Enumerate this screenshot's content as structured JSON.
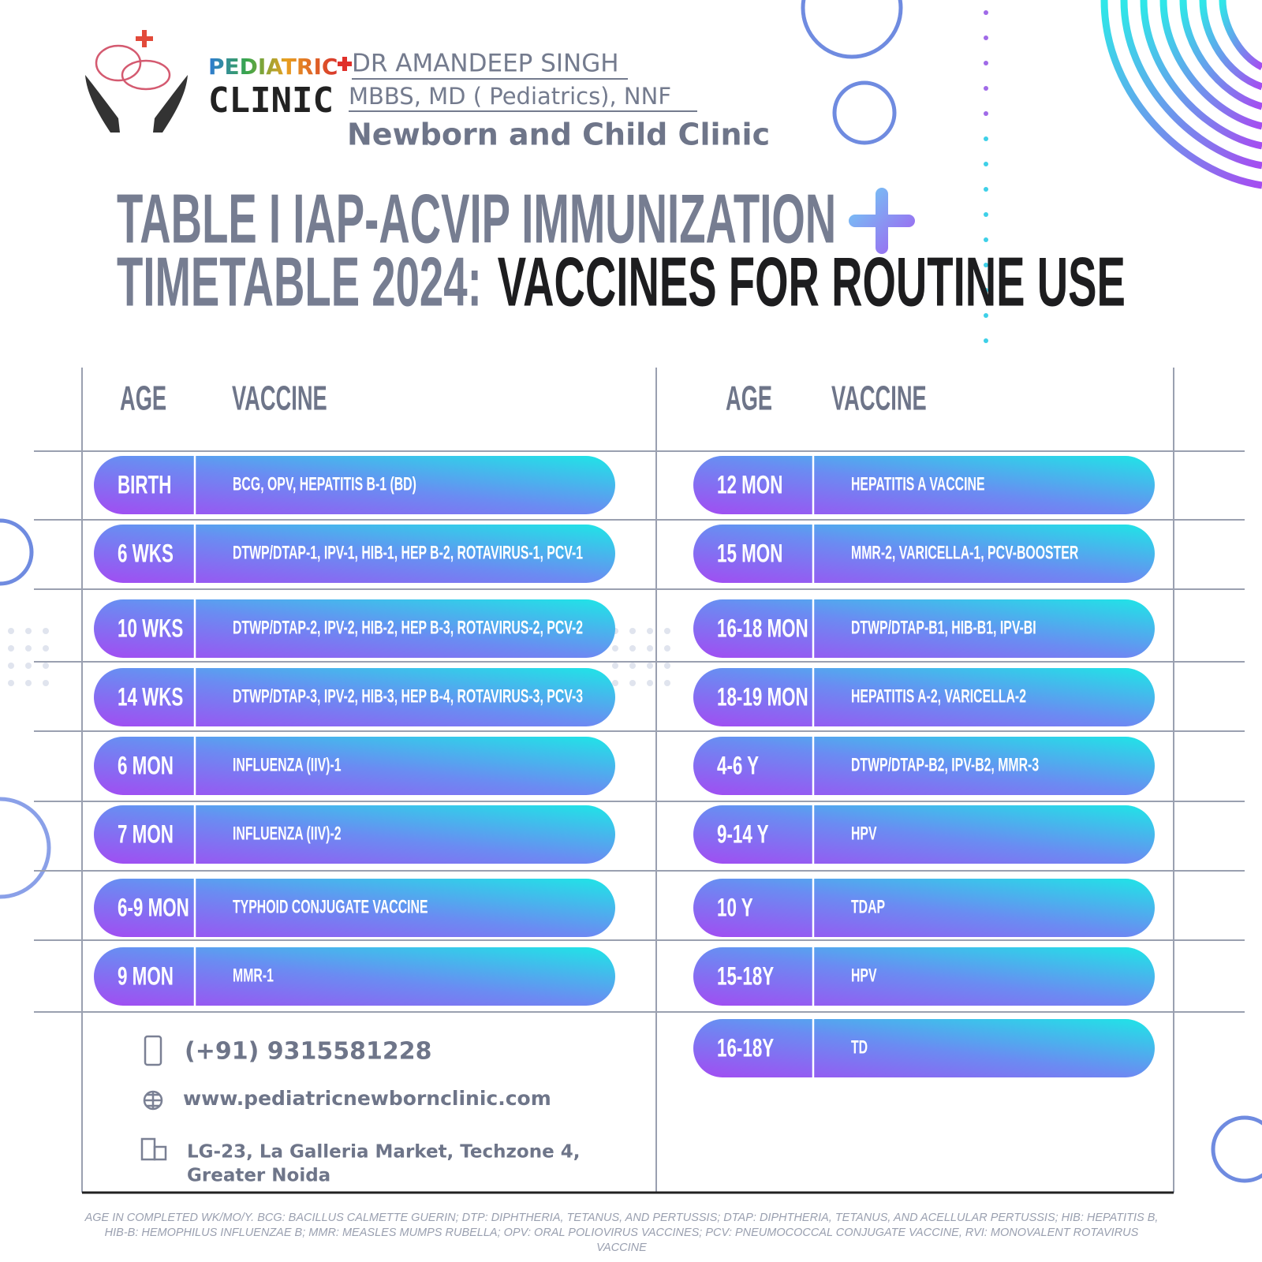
{
  "logo": {
    "line1": "PEDIATRIC",
    "line2": "CLINIC"
  },
  "header": {
    "doctor": "DR AMANDEEP SINGH",
    "degrees": "MBBS, MD ( Pediatrics), NNF",
    "clinic": "Newborn and Child Clinic"
  },
  "title": {
    "line1": "TABLE I IAP-ACVIP IMMUNIZATION",
    "line2_gray": "TIMETABLE 2024:",
    "line2_dark": "VACCINES FOR ROUTINE USE"
  },
  "table": {
    "columns": [
      "AGE",
      "VACCINE"
    ],
    "left_rows": [
      [
        "BIRTH",
        "BCG, OPV, HEPATITIS B-1 (BD)"
      ],
      [
        "6 WKS",
        "DTWP/DTAP-1, IPV-1, HIB-1, HEP B-2, ROTAVIRUS-1, PCV-1"
      ],
      [
        "10 WKS",
        "DTWP/DTAP-2, IPV-2, HIB-2, HEP B-3, ROTAVIRUS-2, PCV-2"
      ],
      [
        "14 WKS",
        "DTWP/DTAP-3, IPV-2, HIB-3, HEP B-4, ROTAVIRUS-3, PCV-3"
      ],
      [
        "6 MON",
        "INFLUENZA (IIV)-1"
      ],
      [
        "7 MON",
        "INFLUENZA (IIV)-2"
      ],
      [
        "6-9 MON",
        "TYPHOID CONJUGATE VACCINE"
      ],
      [
        "9 MON",
        "MMR-1"
      ]
    ],
    "right_rows": [
      [
        "12 MON",
        "HEPATITIS A VACCINE"
      ],
      [
        "15 MON",
        "MMR-2, VARICELLA-1, PCV-BOOSTER"
      ],
      [
        "16-18 MON",
        "DTWP/DTAP-B1, HIB-B1, IPV-BI"
      ],
      [
        "18-19 MON",
        "HEPATITIS A-2, VARICELLA-2"
      ],
      [
        "4-6 Y",
        "DTWP/DTAP-B2, IPV-B2, MMR-3"
      ],
      [
        "9-14 Y",
        "HPV"
      ],
      [
        "10 Y",
        "TDAP"
      ],
      [
        "15-18Y",
        "HPV"
      ],
      [
        "16-18Y",
        "TD"
      ]
    ]
  },
  "contact": {
    "phone": "(+91) 9315581228",
    "website": "www.pediatricnewbornclinic.com",
    "address": [
      "LG-23, La Galleria Market, Techzone 4,",
      "Greater Noida"
    ]
  },
  "footnote": [
    "AGE IN COMPLETED WK/MO/Y. BCG: BACILLUS CALMETTE GUERIN; DTP: DIPHTHERIA, TETANUS, AND PERTUSSIS; DTAP: DIPHTHERIA, TETANUS, AND ACELLULAR PERTUSSIS; HIB: HEPATITIS B,",
    "HIB-B: HEMOPHILUS INFLUENZAE B; MMR: MEASLES MUMPS RUBELLA; OPV: ORAL POLIOVIRUS VACCINES; PCV: PNEUMOCOCCAL CONJUGATE VACCINE, RVI: MONOVALENT ROTAVIRUS",
    "VACCINE"
  ]
}
